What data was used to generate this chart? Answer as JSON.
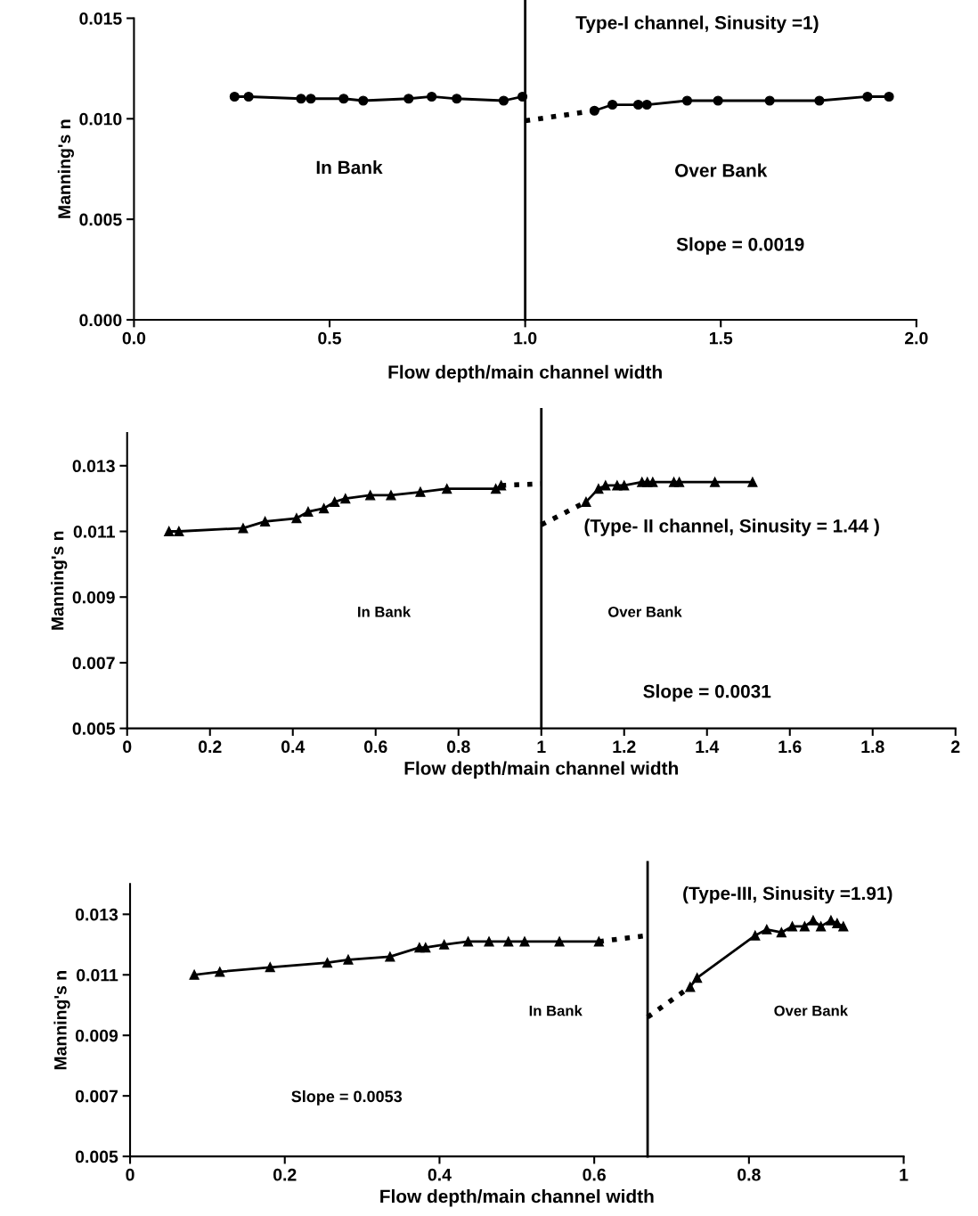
{
  "chart_data": [
    {
      "type": "line",
      "title": "Type-I channel, Sinusity =1)",
      "xlabel": "Flow depth/main channel width",
      "ylabel": "Manning's n",
      "xlim": [
        0,
        2
      ],
      "xticks": [
        {
          "value": 0,
          "label": "0.0"
        },
        0.5,
        {
          "value": 1,
          "label": "1.0"
        },
        1.5,
        {
          "value": 2,
          "label": "2.0"
        }
      ],
      "ylim": [
        0,
        0.015
      ],
      "yticks": [
        {
          "value": 0,
          "label": "0.000"
        },
        0.005,
        {
          "value": 0.01,
          "label": "0.010"
        },
        0.015
      ],
      "grid": false,
      "series": [
        {
          "color": "#000000",
          "marker": "circle",
          "line_style": "solid",
          "x": [
            0.257,
            0.293,
            0.427,
            0.452,
            0.536,
            0.586,
            0.702,
            0.761,
            0.825,
            0.945,
            0.993
          ],
          "values": [
            0.0111,
            0.0111,
            0.011,
            0.011,
            0.011,
            0.0109,
            0.011,
            0.0111,
            0.011,
            0.0109,
            0.0111
          ]
        },
        {
          "color": "#000000",
          "line_style": "dotted",
          "x": [
            1.0,
            1.177
          ],
          "values": [
            0.0099,
            0.0104
          ]
        },
        {
          "color": "#000000",
          "marker": "circle",
          "line_style": "solid",
          "x": [
            1.177,
            1.223,
            1.289,
            1.311,
            1.414,
            1.493,
            1.625,
            1.752,
            1.875,
            1.93
          ],
          "values": [
            0.0104,
            0.0107,
            0.0107,
            0.0107,
            0.0109,
            0.0109,
            0.0109,
            0.0109,
            0.0111,
            0.0111
          ]
        }
      ],
      "ref_lines": [
        {
          "axis": "x",
          "value": 1.0,
          "color": "#000000"
        }
      ],
      "annotations": [
        "In Bank",
        "Over Bank",
        "Slope = 0.0019"
      ]
    },
    {
      "type": "line",
      "title": "(Type- II channel, Sinusity = 1.44 )",
      "xlabel": "Flow depth/main channel width",
      "ylabel": "Manning's n",
      "xlim": [
        0,
        2
      ],
      "xticks": [
        0,
        0.2,
        0.4,
        0.6,
        0.8,
        1,
        1.2,
        1.4,
        1.6,
        1.8,
        2
      ],
      "ylim": [
        0.005,
        0.014
      ],
      "yticks": [
        0.005,
        0.007,
        0.009,
        0.011,
        0.013
      ],
      "grid": false,
      "series": [
        {
          "color": "#000000",
          "marker": "triangle",
          "line_style": "solid",
          "x": [
            0.101,
            0.125,
            0.28,
            0.333,
            0.409,
            0.437,
            0.475,
            0.501,
            0.527,
            0.587,
            0.637,
            0.708,
            0.772,
            0.89,
            0.903
          ],
          "values": [
            0.011,
            0.011,
            0.0111,
            0.0113,
            0.0114,
            0.0116,
            0.0117,
            0.0119,
            0.012,
            0.0121,
            0.0121,
            0.0122,
            0.0123,
            0.0123,
            0.0124
          ]
        },
        {
          "color": "#000000",
          "marker": "none",
          "line_style": "dotted",
          "x": [
            0.903,
            1.0
          ],
          "values": [
            0.0124,
            0.01245
          ]
        },
        {
          "color": "#000000",
          "line_style": "dotted",
          "x": [
            1.0,
            1.108
          ],
          "values": [
            0.0112,
            0.0119
          ]
        },
        {
          "color": "#000000",
          "marker": "triangle",
          "line_style": "solid",
          "x": [
            1.108,
            1.138,
            1.155,
            1.183,
            1.2,
            1.243,
            1.256,
            1.269,
            1.32,
            1.333,
            1.419,
            1.51
          ],
          "values": [
            0.0119,
            0.0123,
            0.0124,
            0.0124,
            0.0124,
            0.0125,
            0.0125,
            0.0125,
            0.0125,
            0.0125,
            0.0125,
            0.0125
          ]
        }
      ],
      "ref_lines": [
        {
          "axis": "x",
          "value": 1.0,
          "color": "#000000"
        }
      ],
      "annotations": [
        "In Bank",
        "Over Bank",
        "Slope = 0.0031"
      ]
    },
    {
      "type": "line",
      "title": "(Type-III, Sinusity =1.91)",
      "xlabel": "Flow depth/main channel width",
      "ylabel": "Manning's n",
      "xlim": [
        0,
        1
      ],
      "xticks": [
        0,
        0.2,
        0.4,
        0.6,
        0.8,
        1
      ],
      "ylim": [
        0.005,
        0.014
      ],
      "yticks": [
        0.005,
        0.007,
        0.009,
        0.011,
        0.013
      ],
      "grid": false,
      "series": [
        {
          "color": "#000000",
          "marker": "triangle",
          "line_style": "solid",
          "x": [
            0.083,
            0.116,
            0.181,
            0.255,
            0.282,
            0.336,
            0.374,
            0.382,
            0.406,
            0.437,
            0.464,
            0.489,
            0.51,
            0.555,
            0.606
          ],
          "values": [
            0.011,
            0.0111,
            0.01125,
            0.0114,
            0.0115,
            0.0116,
            0.0119,
            0.0119,
            0.012,
            0.0121,
            0.0121,
            0.0121,
            0.0121,
            0.0121,
            0.0121
          ]
        },
        {
          "color": "#000000",
          "marker": "none",
          "line_style": "dotted",
          "x": [
            0.606,
            0.669
          ],
          "values": [
            0.0121,
            0.0123
          ]
        },
        {
          "color": "#000000",
          "line_style": "dotted",
          "x": [
            0.669,
            0.724
          ],
          "values": [
            0.0096,
            0.0106
          ]
        },
        {
          "color": "#000000",
          "marker": "triangle",
          "line_style": "solid",
          "x": [
            0.724,
            0.733,
            0.808,
            0.823,
            0.842,
            0.856,
            0.872,
            0.883,
            0.893,
            0.906,
            0.914,
            0.922
          ],
          "values": [
            0.0106,
            0.0109,
            0.0123,
            0.0125,
            0.0124,
            0.0126,
            0.0126,
            0.0128,
            0.0126,
            0.0128,
            0.0127,
            0.0126
          ]
        }
      ],
      "ref_lines": [
        {
          "axis": "x",
          "value": 0.669,
          "color": "#000000"
        }
      ],
      "annotations": [
        "In Bank",
        "Over Bank",
        "Slope = 0.0053"
      ]
    }
  ]
}
